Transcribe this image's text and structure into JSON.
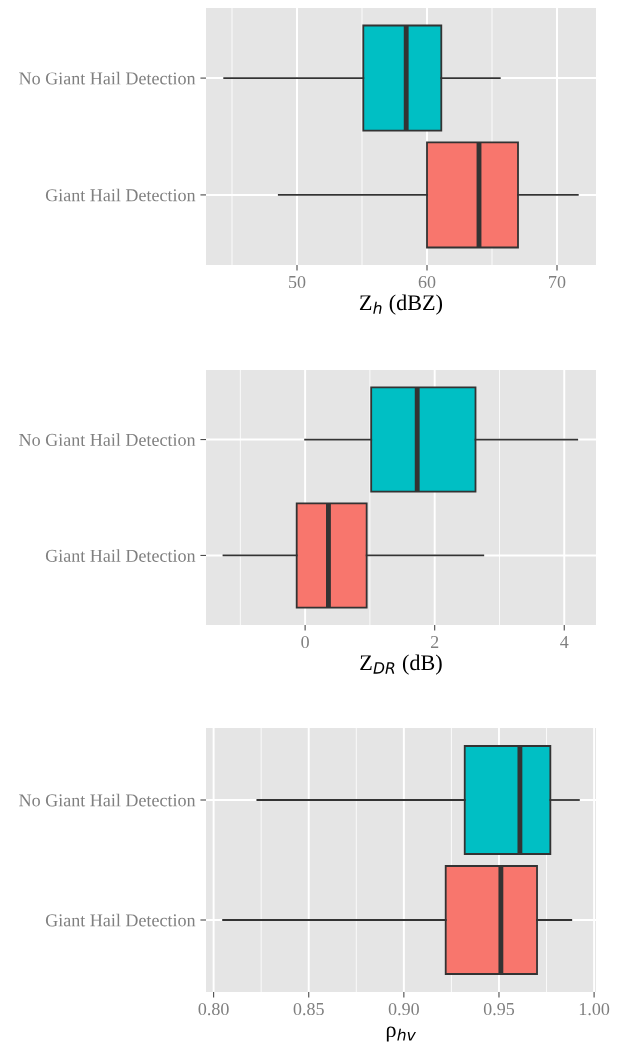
{
  "chart_data": [
    {
      "type": "box",
      "orientation": "horizontal",
      "categories": [
        "No Giant Hail Detection",
        "Giant Hail Detection"
      ],
      "colors": [
        "#00bfc4",
        "#f8766d"
      ],
      "boxes": [
        {
          "low": 44.4,
          "q1": 55.1,
          "median": 58.4,
          "q3": 61.1,
          "high": 65.6
        },
        {
          "low": 48.6,
          "q1": 60.0,
          "median": 64.0,
          "q3": 67.0,
          "high": 71.6
        }
      ],
      "xlabel": "Z$_{h}$ (dBZ)",
      "xlim": [
        43.0,
        73.0
      ],
      "xticks": [
        50,
        60,
        70
      ],
      "grid": true
    },
    {
      "type": "box",
      "orientation": "horizontal",
      "categories": [
        "No Giant Hail Detection",
        "Giant Hail Detection"
      ],
      "colors": [
        "#00bfc4",
        "#f8766d"
      ],
      "boxes": [
        {
          "low": 0.0,
          "q1": 1.02,
          "median": 1.73,
          "q3": 2.63,
          "high": 4.2
        },
        {
          "low": -1.26,
          "q1": -0.13,
          "median": 0.36,
          "q3": 0.95,
          "high": 2.75
        }
      ],
      "xlabel": "Z$_{DR}$ (dB)",
      "xlim": [
        -1.53,
        4.49
      ],
      "xticks": [
        0,
        2,
        4
      ],
      "grid": true
    },
    {
      "type": "box",
      "orientation": "horizontal",
      "categories": [
        "No Giant Hail Detection",
        "Giant Hail Detection"
      ],
      "colors": [
        "#00bfc4",
        "#f8766d"
      ],
      "boxes": [
        {
          "low": 0.823,
          "q1": 0.932,
          "median": 0.961,
          "q3": 0.977,
          "high": 0.992
        },
        {
          "low": 0.805,
          "q1": 0.922,
          "median": 0.951,
          "q3": 0.97,
          "high": 0.988
        }
      ],
      "xlabel": "ρ$_{hv}$",
      "xlim": [
        0.796,
        1.001
      ],
      "xticks": [
        {
          "value": 0.8,
          "label": "0.80"
        },
        {
          "value": 0.85,
          "label": "0.85"
        },
        {
          "value": 0.9,
          "label": "0.90"
        },
        {
          "value": 0.95,
          "label": "0.95"
        },
        {
          "value": 1.0,
          "label": "1.00"
        }
      ],
      "grid": true
    }
  ]
}
